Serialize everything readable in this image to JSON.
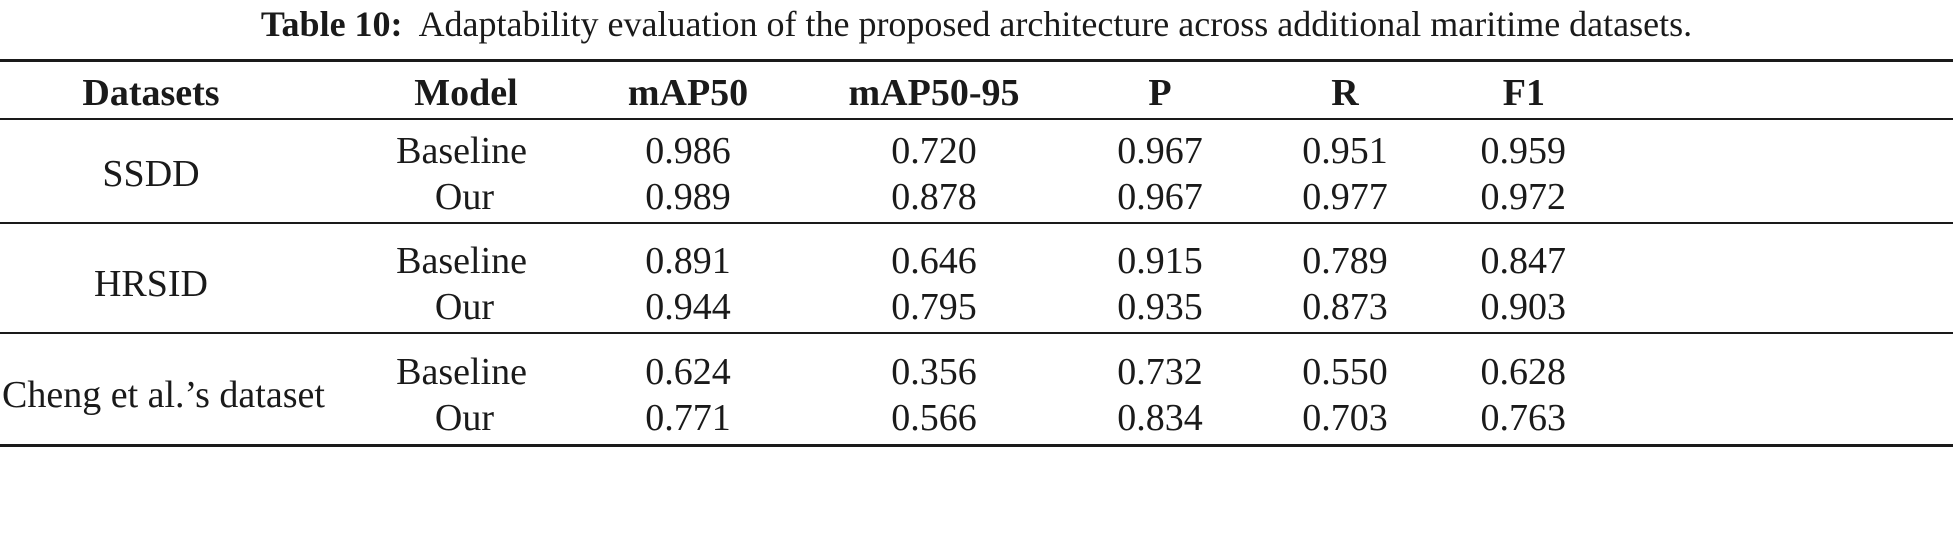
{
  "caption": {
    "label": "Table 10:",
    "text": "Adaptability evaluation of the proposed architecture across additional maritime datasets."
  },
  "table": {
    "headers": [
      "Datasets",
      "Model",
      "mAP50",
      "mAP50-95",
      "P",
      "R",
      "F1"
    ],
    "groups": [
      {
        "dataset": "SSDD",
        "rows": [
          {
            "model": "Baseline",
            "values": [
              "0.986",
              "0.720",
              "0.967",
              "0.951",
              "0.959"
            ]
          },
          {
            "model": "Our",
            "values": [
              "0.989",
              "0.878",
              "0.967",
              "0.977",
              "0.972"
            ]
          }
        ]
      },
      {
        "dataset": "HRSID",
        "rows": [
          {
            "model": "Baseline",
            "values": [
              "0.891",
              "0.646",
              "0.915",
              "0.789",
              "0.847"
            ]
          },
          {
            "model": "Our",
            "values": [
              "0.944",
              "0.795",
              "0.935",
              "0.873",
              "0.903"
            ]
          }
        ]
      },
      {
        "dataset": "Cheng et al.’s dataset",
        "rows": [
          {
            "model": "Baseline",
            "values": [
              "0.624",
              "0.356",
              "0.732",
              "0.550",
              "0.628"
            ]
          },
          {
            "model": "Our",
            "values": [
              "0.771",
              "0.566",
              "0.834",
              "0.703",
              "0.763"
            ]
          }
        ]
      }
    ]
  }
}
